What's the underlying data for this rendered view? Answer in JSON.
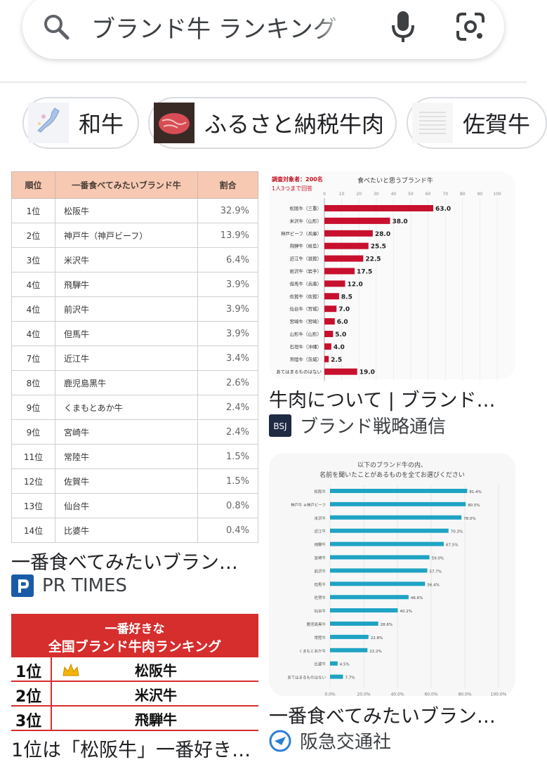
{
  "search": {
    "query": "ブランド牛 ランキング",
    "icons": [
      "search-icon",
      "mic-icon",
      "google-lens-icon"
    ]
  },
  "chips": [
    {
      "label": "和牛",
      "thumb": "japan-map"
    },
    {
      "label": "ふるさと納税牛肉",
      "thumb": "beef-photo"
    },
    {
      "label": "佐賀牛",
      "thumb": "table-document"
    }
  ],
  "results": {
    "r1": {
      "caption": "一番食べてみたいブラン…",
      "source": "PR TIMES",
      "source_color": "#1a5ba8",
      "table": {
        "headers": [
          "順位",
          "一番食べてみたいブランド牛",
          "割合"
        ],
        "rows": [
          [
            "1位",
            "松阪牛",
            "32.9%"
          ],
          [
            "2位",
            "神戸牛（神戸ビーフ）",
            "13.9%"
          ],
          [
            "3位",
            "米沢牛",
            "6.4%"
          ],
          [
            "4位",
            "飛騨牛",
            "3.9%"
          ],
          [
            "4位",
            "前沢牛",
            "3.9%"
          ],
          [
            "4位",
            "但馬牛",
            "3.9%"
          ],
          [
            "7位",
            "近江牛",
            "3.4%"
          ],
          [
            "8位",
            "鹿児島黒牛",
            "2.6%"
          ],
          [
            "9位",
            "くまもとあか牛",
            "2.4%"
          ],
          [
            "9位",
            "宮崎牛",
            "2.4%"
          ],
          [
            "11位",
            "常陸牛",
            "1.5%"
          ],
          [
            "12位",
            "佐賀牛",
            "1.5%"
          ],
          [
            "13位",
            "仙台牛",
            "0.8%"
          ],
          [
            "14位",
            "比婆牛",
            "0.4%"
          ]
        ]
      }
    },
    "r2": {
      "caption": "牛肉について | ブランド…",
      "source": "ブランド戦略通信",
      "logo_text": "BSJ",
      "chart_data": {
        "type": "bar",
        "orientation": "horizontal",
        "title": "食べたいと思うブランド牛",
        "note_1": "調査対象者：200名",
        "note_2": "1人3つまで回答",
        "categories": [
          "松阪牛（三重）",
          "米沢牛（山形）",
          "神戸ビーフ（兵庫）",
          "飛騨牛（岐阜）",
          "近江牛（滋賀）",
          "前沢牛（岩手）",
          "但馬牛（兵庫）",
          "佐賀牛（佐賀）",
          "仙台牛（宮城）",
          "宮崎牛（宮崎）",
          "山形牛（山形）",
          "石垣牛（沖縄）",
          "常陸牛（茨城）",
          "あてはまるものはない"
        ],
        "values": [
          63.0,
          38.0,
          28.0,
          25.5,
          22.5,
          17.5,
          12.0,
          8.5,
          7.0,
          6.0,
          5.0,
          4.0,
          2.5,
          19.0
        ],
        "value_labels": [
          "63.0",
          "38.0",
          "28.0",
          "25.5",
          "22.5",
          "17.5",
          "12.0",
          "8.5",
          "7.0",
          "6.0",
          "5.0",
          "4.0",
          "2.5",
          "19.0"
        ],
        "xlim": [
          0,
          100
        ],
        "ticks": [
          "0",
          "10",
          "20",
          "30",
          "40",
          "50",
          "60",
          "70",
          "80",
          "90",
          "100"
        ],
        "bar_color": "#c8102e"
      }
    },
    "r3": {
      "caption": "一番食べてみたいブラン…",
      "chart_data": {
        "type": "bar",
        "orientation": "horizontal",
        "title_line1": "以下のブランド牛の内、",
        "title_line2": "名前を聞いたことがあるものを全てお選びください",
        "categories": [
          "松阪牛",
          "神戸牛 ※神戸ビーフ",
          "米沢牛",
          "近江牛",
          "飛騨牛",
          "宮崎牛",
          "前沢牛",
          "但馬牛",
          "佐賀牛",
          "仙台牛",
          "鹿児島黒牛",
          "常陸牛",
          "くまもとあか牛",
          "比婆牛",
          "あてはまるものはない"
        ],
        "values": [
          81.4,
          80.5,
          78.0,
          70.3,
          67.5,
          59.0,
          57.7,
          56.4,
          46.6,
          40.2,
          28.6,
          22.8,
          22.2,
          4.5,
          7.7
        ],
        "value_labels": [
          "81.4%",
          "80.5%",
          "78.0%",
          "70.3%",
          "67.5%",
          "59.0%",
          "57.7%",
          "56.4%",
          "46.6%",
          "40.2%",
          "28.6%",
          "22.8%",
          "22.2%",
          "4.5%",
          "7.7%"
        ],
        "xlim": [
          0,
          100
        ],
        "ticks": [
          "0.0%",
          "20.0%",
          "40.0%",
          "60.0%",
          "80.0%",
          "100.0%"
        ],
        "bar_color": "#1fa3c4"
      }
    },
    "r4": {
      "heading_line1": "一番好きな",
      "heading_line2": "全国ブランド牛肉ランキング",
      "rows": [
        {
          "rank": "1位",
          "name": "松阪牛"
        },
        {
          "rank": "2位",
          "name": "米沢牛"
        },
        {
          "rank": "3位",
          "name": "飛騨牛"
        }
      ],
      "caption": "1位は「松阪牛」一番好き…"
    },
    "r5": {
      "source": "阪急交通社"
    }
  }
}
